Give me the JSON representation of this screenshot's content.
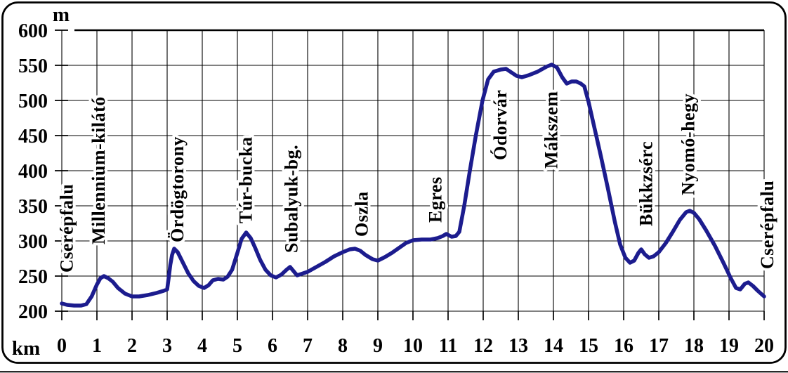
{
  "page": {
    "background": "#ffffff",
    "border_color": "#000000",
    "grid_color": "#000000"
  },
  "chart_data": {
    "type": "line",
    "title": "",
    "grid": true,
    "legend": "none",
    "line_color": "#1c1c8e",
    "x_axis": {
      "unit_label": "km",
      "min": 0,
      "max": 20,
      "tick_step": 1,
      "ticks": [
        0,
        1,
        2,
        3,
        4,
        5,
        6,
        7,
        8,
        9,
        10,
        11,
        12,
        13,
        14,
        15,
        16,
        17,
        18,
        19,
        20
      ]
    },
    "y_axis": {
      "unit_label": "m",
      "min": 200,
      "max": 600,
      "tick_step": 50,
      "ticks": [
        600,
        550,
        500,
        450,
        400,
        350,
        300,
        250,
        200
      ]
    },
    "series": [
      {
        "name": "elevation-profile",
        "points": [
          [
            0,
            211
          ],
          [
            0.15,
            209
          ],
          [
            0.35,
            208
          ],
          [
            0.55,
            208
          ],
          [
            0.7,
            210
          ],
          [
            0.85,
            221
          ],
          [
            1.0,
            238
          ],
          [
            1.1,
            247
          ],
          [
            1.2,
            250
          ],
          [
            1.32,
            247
          ],
          [
            1.45,
            242
          ],
          [
            1.6,
            233
          ],
          [
            1.8,
            225
          ],
          [
            2.0,
            221
          ],
          [
            2.2,
            221
          ],
          [
            2.45,
            223
          ],
          [
            2.7,
            226
          ],
          [
            2.9,
            229
          ],
          [
            3.0,
            231
          ],
          [
            3.04,
            246
          ],
          [
            3.09,
            266
          ],
          [
            3.14,
            280
          ],
          [
            3.2,
            289
          ],
          [
            3.3,
            284
          ],
          [
            3.45,
            269
          ],
          [
            3.6,
            254
          ],
          [
            3.75,
            243
          ],
          [
            3.9,
            236
          ],
          [
            4.05,
            233
          ],
          [
            4.18,
            237
          ],
          [
            4.3,
            244
          ],
          [
            4.45,
            246
          ],
          [
            4.6,
            245
          ],
          [
            4.72,
            249
          ],
          [
            4.85,
            259
          ],
          [
            5.0,
            283
          ],
          [
            5.12,
            303
          ],
          [
            5.25,
            312
          ],
          [
            5.38,
            304
          ],
          [
            5.5,
            291
          ],
          [
            5.65,
            273
          ],
          [
            5.8,
            259
          ],
          [
            5.95,
            251
          ],
          [
            6.1,
            248
          ],
          [
            6.25,
            252
          ],
          [
            6.4,
            259
          ],
          [
            6.5,
            263
          ],
          [
            6.6,
            257
          ],
          [
            6.7,
            251
          ],
          [
            6.82,
            253
          ],
          [
            7.0,
            256
          ],
          [
            7.25,
            263
          ],
          [
            7.5,
            270
          ],
          [
            7.75,
            278
          ],
          [
            8.0,
            284
          ],
          [
            8.2,
            288
          ],
          [
            8.35,
            289
          ],
          [
            8.5,
            286
          ],
          [
            8.65,
            280
          ],
          [
            8.85,
            274
          ],
          [
            9.0,
            272
          ],
          [
            9.2,
            277
          ],
          [
            9.4,
            283
          ],
          [
            9.6,
            290
          ],
          [
            9.8,
            297
          ],
          [
            10.0,
            301
          ],
          [
            10.25,
            302
          ],
          [
            10.5,
            302
          ],
          [
            10.7,
            304
          ],
          [
            10.85,
            307
          ],
          [
            10.95,
            310
          ],
          [
            11.1,
            306
          ],
          [
            11.22,
            307
          ],
          [
            11.32,
            313
          ],
          [
            11.46,
            350
          ],
          [
            11.62,
            400
          ],
          [
            11.79,
            450
          ],
          [
            11.98,
            500
          ],
          [
            12.14,
            530
          ],
          [
            12.3,
            541
          ],
          [
            12.5,
            544
          ],
          [
            12.65,
            545
          ],
          [
            12.8,
            540
          ],
          [
            12.95,
            535
          ],
          [
            13.1,
            533
          ],
          [
            13.3,
            536
          ],
          [
            13.55,
            541
          ],
          [
            13.8,
            548
          ],
          [
            13.95,
            551
          ],
          [
            14.1,
            547
          ],
          [
            14.25,
            533
          ],
          [
            14.38,
            524
          ],
          [
            14.52,
            527
          ],
          [
            14.65,
            527
          ],
          [
            14.78,
            524
          ],
          [
            14.88,
            520
          ],
          [
            15.0,
            498
          ],
          [
            15.15,
            465
          ],
          [
            15.35,
            421
          ],
          [
            15.55,
            375
          ],
          [
            15.75,
            327
          ],
          [
            15.9,
            295
          ],
          [
            16.05,
            276
          ],
          [
            16.18,
            269
          ],
          [
            16.3,
            272
          ],
          [
            16.42,
            283
          ],
          [
            16.5,
            288
          ],
          [
            16.6,
            281
          ],
          [
            16.72,
            276
          ],
          [
            16.85,
            278
          ],
          [
            17.0,
            284
          ],
          [
            17.2,
            297
          ],
          [
            17.4,
            313
          ],
          [
            17.6,
            330
          ],
          [
            17.78,
            341
          ],
          [
            17.88,
            343
          ],
          [
            18.0,
            340
          ],
          [
            18.15,
            331
          ],
          [
            18.35,
            315
          ],
          [
            18.6,
            293
          ],
          [
            18.85,
            268
          ],
          [
            19.05,
            247
          ],
          [
            19.2,
            233
          ],
          [
            19.32,
            231
          ],
          [
            19.45,
            239
          ],
          [
            19.55,
            241
          ],
          [
            19.68,
            236
          ],
          [
            19.82,
            229
          ],
          [
            20.0,
            221
          ]
        ]
      }
    ],
    "waypoints": [
      {
        "name": "Cserépfalu",
        "km": 0.15,
        "label_base_m": 255
      },
      {
        "name": "Millennium-kilátó",
        "km": 1.06,
        "label_base_m": 295
      },
      {
        "name": "Ördögtorony",
        "km": 3.3,
        "label_base_m": 298
      },
      {
        "name": "Túr-bucka",
        "km": 5.25,
        "label_base_m": 325
      },
      {
        "name": "Subalyuk-bg.",
        "km": 6.55,
        "label_base_m": 283
      },
      {
        "name": "Oszla",
        "km": 8.55,
        "label_base_m": 306
      },
      {
        "name": "Egres",
        "km": 10.65,
        "label_base_m": 326
      },
      {
        "name": "Ódorvár",
        "km": 12.5,
        "label_base_m": 415
      },
      {
        "name": "Mákszem",
        "km": 13.95,
        "label_base_m": 403
      },
      {
        "name": "Bükkzsérc",
        "km": 16.65,
        "label_base_m": 321
      },
      {
        "name": "Nyomó-hegy",
        "km": 17.85,
        "label_base_m": 365
      },
      {
        "name": "Cserépfalu",
        "km": 20.1,
        "label_base_m": 260
      }
    ]
  }
}
